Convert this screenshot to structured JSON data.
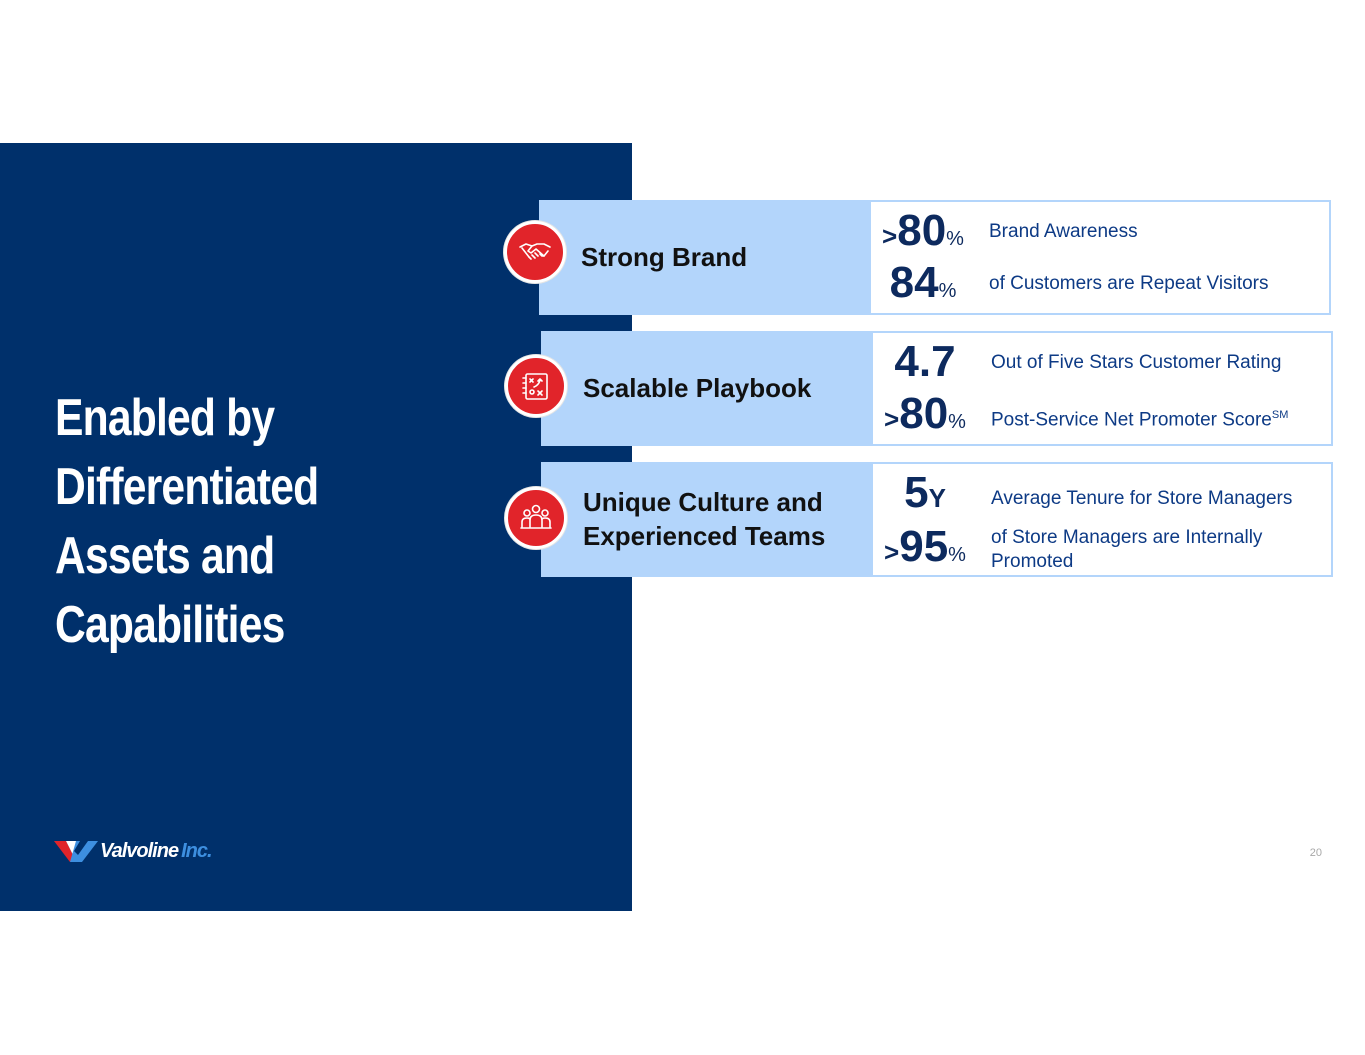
{
  "headline": [
    "Enabled by",
    "Differentiated",
    "Assets and",
    "Capabilities"
  ],
  "logo": {
    "brand": "Valvoline",
    "suffix": "Inc."
  },
  "page_number": "20",
  "rows": [
    {
      "title_lines": [
        "Strong Brand"
      ],
      "icon": "handshake-icon",
      "stats": [
        {
          "prefix": ">",
          "value": "80",
          "suffix": "%",
          "desc": "Brand Awareness",
          "desc_sup": ""
        },
        {
          "prefix": "",
          "value": "84",
          "suffix": "%",
          "desc": "of Customers are Repeat Visitors",
          "desc_sup": ""
        }
      ]
    },
    {
      "title_lines": [
        "Scalable Playbook"
      ],
      "icon": "playbook-strategy-icon",
      "stats": [
        {
          "prefix": "",
          "value": "4.7",
          "suffix": "",
          "desc": "Out of Five Stars Customer Rating",
          "desc_sup": ""
        },
        {
          "prefix": ">",
          "value": "80",
          "suffix": "%",
          "desc": "Post-Service Net Promoter Score",
          "desc_sup": "SM"
        }
      ]
    },
    {
      "title_lines": [
        "Unique Culture and",
        "Experienced Teams"
      ],
      "icon": "team-icon",
      "stats": [
        {
          "prefix": "",
          "value": "5",
          "suffix": "Y",
          "desc": "Average Tenure for Store Managers",
          "desc_sup": ""
        },
        {
          "prefix": ">",
          "value": "95",
          "suffix": "%",
          "desc": "of Store Managers are Internally Promoted",
          "desc_sup": ""
        }
      ]
    }
  ],
  "colors": {
    "navy": "#00306b",
    "light_blue": "#b3d5fb",
    "accent_red": "#e1242a",
    "stat_blue": "#0d2a5e"
  }
}
